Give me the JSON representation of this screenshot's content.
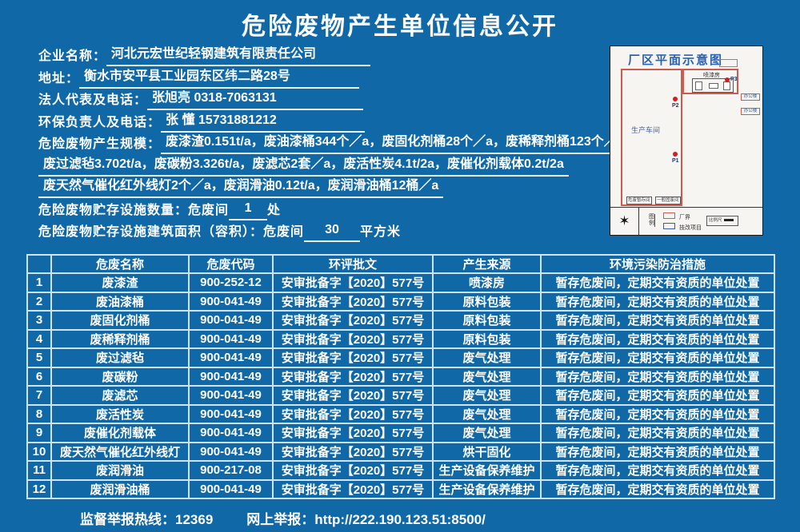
{
  "title": "危险废物产生单位信息公开",
  "colors": {
    "background": "#1068a6",
    "plan_red": "#cc5a4e",
    "table_border": "#cfe3f0"
  },
  "info": {
    "company_label": "企业名称：",
    "company_value": "河北元宏世纪轻钢建筑有限责任公司",
    "address_label": "地址：",
    "address_value": "衡水市安平县工业园东区纬二路28号",
    "legal_rep_label": "法人代表及电话：",
    "legal_rep_value": "张旭亮  0318-7063131",
    "env_officer_label": "环保负责人及电话：",
    "env_officer_value": "张 懂  15731881212",
    "scale_label": "危险废物产生规模：",
    "scale_line1": "废漆渣0.151t/a，废油漆桶344个／a，废固化剂桶28个／a，废稀释剂桶123个／a，",
    "scale_line2": "废过滤毡3.702t/a，废碳粉3.326t/a，废滤芯2套／a，废活性炭4.1t/2a，废催化剂载体0.2t/2a",
    "scale_line3": "废天然气催化红外线灯2个／a，废润滑油0.12t/a，废润滑油桶12桶／a",
    "storage_count_label": "危险废物贮存设施数量：危废间",
    "storage_count_value": "1",
    "storage_count_suffix": "处",
    "storage_area_label": "危险废物贮存设施建筑面积（容积）：危废间",
    "storage_area_value": "30",
    "storage_area_suffix": "平方米"
  },
  "diagram": {
    "title": "厂区平面示意图",
    "workshop_label": "生产车间",
    "spray_room_label": "喷漆房",
    "office_label_1": "办公楼",
    "office_label_2": "办公楼",
    "point_1": "P1",
    "point_2": "P2",
    "point_3": "P3",
    "hazardous_storage_label": "危废暂存间",
    "general_waste_label": "一般固废间",
    "legend_title": "图例",
    "legend_boundary": "厂界",
    "legend_project": "技改项目",
    "scale_bar_label": "比例尺",
    "compass_icon": "✶"
  },
  "table": {
    "headers": [
      "",
      "危废名称",
      "危废代码",
      "环评批文",
      "产生来源",
      "环境污染防治措施"
    ],
    "col_keys": [
      "index",
      "waste-name",
      "waste-code",
      "eia-approval",
      "source",
      "control-measure"
    ],
    "rows": [
      [
        "1",
        "废漆渣",
        "900-252-12",
        "安审批备字【2020】577号",
        "喷漆房",
        "暂存危废间，定期交有资质的单位处置"
      ],
      [
        "2",
        "废油漆桶",
        "900-041-49",
        "安审批备字【2020】577号",
        "原料包装",
        "暂存危废间，定期交有资质的单位处置"
      ],
      [
        "3",
        "废固化剂桶",
        "900-041-49",
        "安审批备字【2020】577号",
        "原料包装",
        "暂存危废间，定期交有资质的单位处置"
      ],
      [
        "4",
        "废稀释剂桶",
        "900-041-49",
        "安审批备字【2020】577号",
        "原料包装",
        "暂存危废间，定期交有资质的单位处置"
      ],
      [
        "5",
        "废过滤毡",
        "900-041-49",
        "安审批备字【2020】577号",
        "废气处理",
        "暂存危废间，定期交有资质的单位处置"
      ],
      [
        "6",
        "废碳粉",
        "900-041-49",
        "安审批备字【2020】577号",
        "废气处理",
        "暂存危废间，定期交有资质的单位处置"
      ],
      [
        "7",
        "废滤芯",
        "900-041-49",
        "安审批备字【2020】577号",
        "废气处理",
        "暂存危废间，定期交有资质的单位处置"
      ],
      [
        "8",
        "废活性炭",
        "900-041-49",
        "安审批备字【2020】577号",
        "废气处理",
        "暂存危废间，定期交有资质的单位处置"
      ],
      [
        "9",
        "废催化剂载体",
        "900-041-49",
        "安审批备字【2020】577号",
        "废气处理",
        "暂存危废间，定期交有资质的单位处置"
      ],
      [
        "10",
        "废天然气催化红外线灯",
        "900-041-49",
        "安审批备字【2020】577号",
        "烘干固化",
        "暂存危废间，定期交有资质的单位处置"
      ],
      [
        "11",
        "废润滑油",
        "900-217-08",
        "安审批备字【2020】577号",
        "生产设备保养维护",
        "暂存危废间，定期交有资质的单位处置"
      ],
      [
        "12",
        "废润滑油桶",
        "900-041-49",
        "安审批备字【2020】577号",
        "生产设备保养维护",
        "暂存危废间，定期交有资质的单位处置"
      ]
    ]
  },
  "footer": {
    "hotline_label": "监督举报热线：",
    "hotline_value": "12369",
    "web_label": "网上举报：",
    "web_value": "http://222.190.123.51:8500/"
  }
}
